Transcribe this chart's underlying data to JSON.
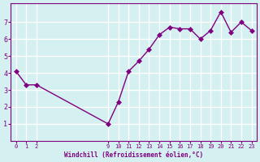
{
  "x": [
    0,
    1,
    2,
    9,
    10,
    11,
    12,
    13,
    14,
    15,
    16,
    17,
    18,
    19,
    20,
    21,
    22,
    23
  ],
  "y": [
    4.1,
    3.3,
    3.3,
    1.0,
    2.3,
    4.1,
    4.7,
    5.4,
    6.25,
    6.7,
    6.6,
    6.6,
    6.0,
    6.5,
    7.6,
    6.4,
    7.0,
    6.5
  ],
  "xlabel": "Windchill (Refroidissement éolien,°C)",
  "line_color": "#800080",
  "marker": "D",
  "marker_size": 3,
  "bg_color": "#d4f0f0",
  "grid_color": "#ffffff",
  "ylim": [
    0,
    8
  ],
  "xlim": [
    -0.5,
    23.5
  ],
  "yticks": [
    1,
    2,
    3,
    4,
    5,
    6,
    7
  ],
  "xticks": [
    0,
    1,
    2,
    9,
    10,
    11,
    12,
    13,
    14,
    15,
    16,
    17,
    18,
    19,
    20,
    21,
    22,
    23
  ]
}
